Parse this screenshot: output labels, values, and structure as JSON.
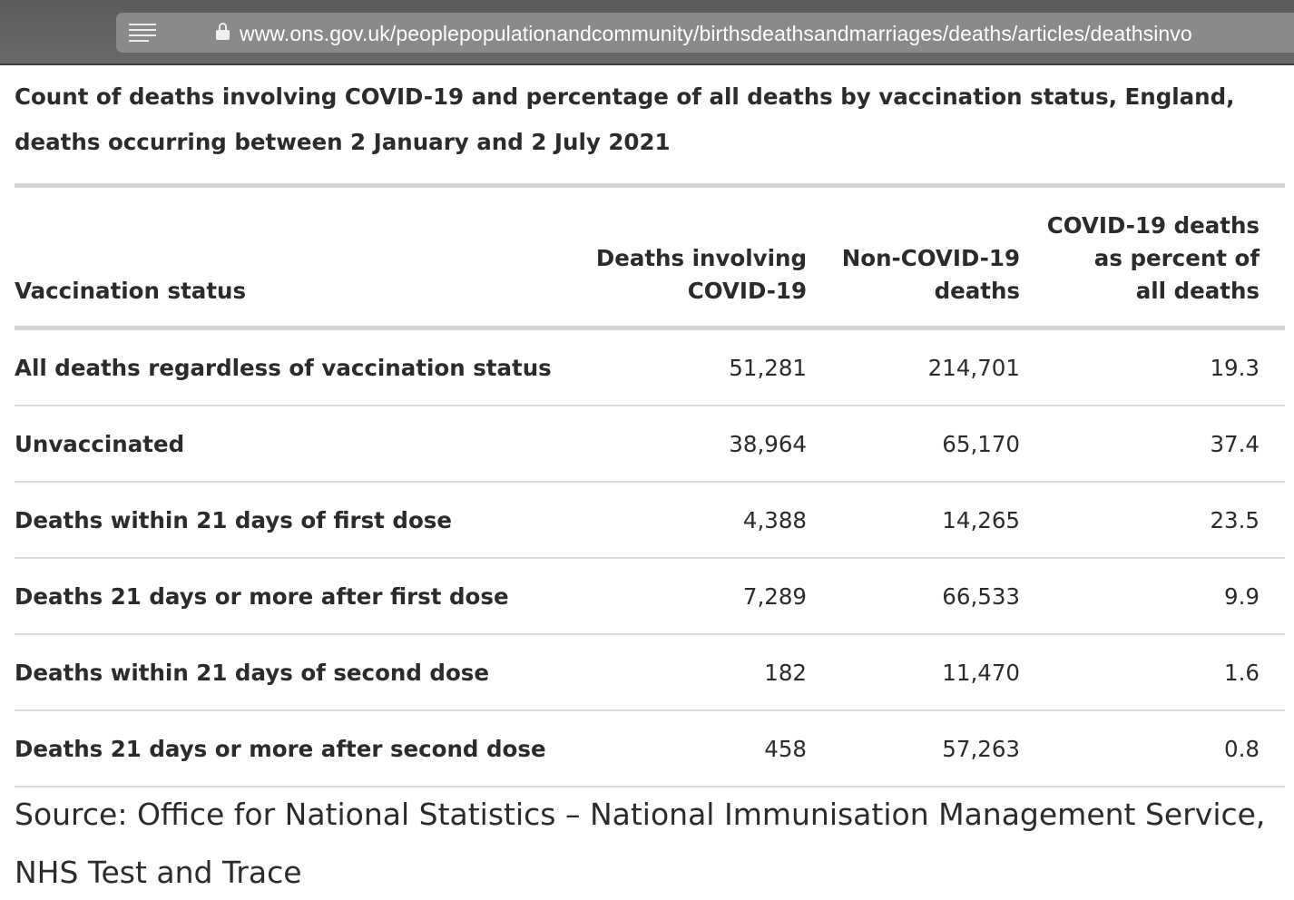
{
  "browser": {
    "url": "www.ons.gov.uk/peoplepopulationandcommunity/birthsdeathsandmarriages/deaths/articles/deathsinvo",
    "reader_icon": "reader-view-icon",
    "lock_icon": "lock-icon"
  },
  "page": {
    "title": "Count of deaths involving COVID-19 and percentage of all deaths by vaccination status, England, deaths occurring between 2 January and 2 July 2021",
    "source": "Source: Office for National Statistics – National Immunisation Management Service, NHS Test and Trace"
  },
  "table": {
    "headers": {
      "status": "Vaccination status",
      "covid_line1": "Deaths involving",
      "covid_line2": "COVID-19",
      "noncovid_line1": "Non-COVID-19",
      "noncovid_line2": "deaths",
      "pct_line1": "COVID-19 deaths",
      "pct_line2": "as percent of",
      "pct_line3": "all deaths"
    },
    "rows": [
      {
        "status": "All deaths regardless of vaccination status",
        "covid": "51,281",
        "noncovid": "214,701",
        "pct": "19.3"
      },
      {
        "status": "Unvaccinated",
        "covid": "38,964",
        "noncovid": "65,170",
        "pct": "37.4"
      },
      {
        "status": "Deaths within 21 days of first dose",
        "covid": "4,388",
        "noncovid": "14,265",
        "pct": "23.5"
      },
      {
        "status": "Deaths 21 days or more after first dose",
        "covid": "7,289",
        "noncovid": "66,533",
        "pct": "9.9"
      },
      {
        "status": "Deaths within 21 days of second dose",
        "covid": "182",
        "noncovid": "11,470",
        "pct": "1.6"
      },
      {
        "status": "Deaths 21 days or more after second dose",
        "covid": "458",
        "noncovid": "57,263",
        "pct": "0.8"
      }
    ]
  }
}
